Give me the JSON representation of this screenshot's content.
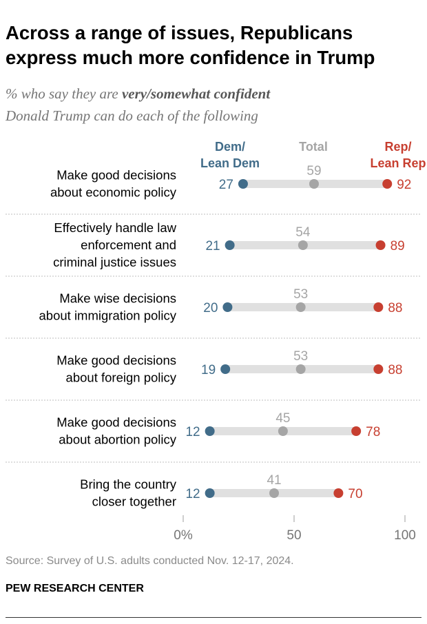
{
  "title": "Across a range of issues, Republicans express much more confidence in Trump",
  "subtitle": {
    "prefix": "% who say they are ",
    "emphasis": "very/somewhat confident",
    "line2": "Donald Trump can do each of the following"
  },
  "source": "Source: Survey of U.S. adults conducted Nov. 12-17, 2024.",
  "brand": "PEW RESEARCH CENTER",
  "colors": {
    "dem": "#416c89",
    "total": "#a5a5a5",
    "rep": "#c73f30",
    "track": "#e0e0e0"
  },
  "chart_data": {
    "type": "dot",
    "x_ticks": [
      {
        "value": 0,
        "label": "0%"
      },
      {
        "value": 50,
        "label": "50"
      },
      {
        "value": 100,
        "label": "100"
      }
    ],
    "xlim": [
      0,
      100
    ],
    "legend": [
      {
        "key": "dem",
        "lines": [
          "Dem/",
          "Lean Dem"
        ]
      },
      {
        "key": "total",
        "lines": [
          "Total"
        ]
      },
      {
        "key": "rep",
        "lines": [
          "Rep/",
          "Lean Rep"
        ]
      }
    ],
    "categories": [
      {
        "lines": [
          "Make good decisions",
          "about economic policy"
        ]
      },
      {
        "lines": [
          "Effectively handle law",
          "enforcement and",
          "criminal justice issues"
        ]
      },
      {
        "lines": [
          "Make wise decisions",
          "about immigration policy"
        ]
      },
      {
        "lines": [
          "Make good decisions",
          "about foreign policy"
        ]
      },
      {
        "lines": [
          "Make good decisions",
          "about abortion policy"
        ]
      },
      {
        "lines": [
          "Bring the country",
          "closer together"
        ]
      }
    ],
    "series": [
      {
        "key": "dem",
        "name": "Dem/Lean Dem",
        "values": [
          27,
          21,
          20,
          19,
          12,
          12
        ]
      },
      {
        "key": "total",
        "name": "Total",
        "values": [
          59,
          54,
          53,
          53,
          45,
          41
        ]
      },
      {
        "key": "rep",
        "name": "Rep/Lean Rep",
        "values": [
          92,
          89,
          88,
          88,
          78,
          70
        ]
      }
    ]
  }
}
